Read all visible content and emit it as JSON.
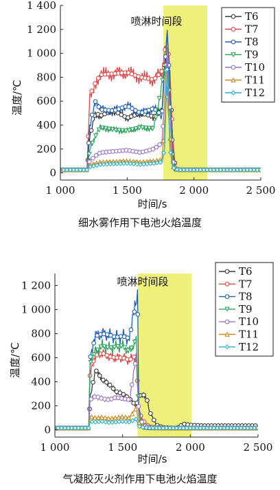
{
  "figure": {
    "captions": [
      "细水雾作用下电池火焰温度",
      "气凝胶灭火剂作用下电池火焰温度"
    ]
  },
  "colors": {
    "spray_band": "#eef07a",
    "T6": "#3a3a3a",
    "T7": "#e04848",
    "T8": "#1f5fb4",
    "T9": "#2fa35f",
    "T10": "#9a72c8",
    "T11": "#c88a1e",
    "T12": "#2ab0c8"
  },
  "chart_data": [
    {
      "type": "line",
      "title": "细水雾作用下电池火焰温度",
      "xlabel": "时间/s",
      "ylabel": "温度/℃",
      "xlim": [
        1000,
        2500
      ],
      "ylim": [
        -60,
        1400
      ],
      "xticks": [
        1000,
        1500,
        2000,
        2500
      ],
      "xtick_labels": [
        "1 000",
        "1 500",
        "2 000",
        "2 500"
      ],
      "yticks": [
        0,
        200,
        400,
        600,
        800,
        1000,
        1200,
        1400
      ],
      "ytick_labels": [
        "0",
        "200",
        "400",
        "600",
        "800",
        "1 000",
        "1 200",
        "1 400"
      ],
      "annotation": "喷淋时间段",
      "spray_range": [
        1770,
        2100
      ],
      "legend": "top-right",
      "series": [
        {
          "name": "T6",
          "x": [
            1000,
            1200,
            1220,
            1260,
            1300,
            1400,
            1500,
            1600,
            1700,
            1760,
            1780,
            1800,
            1820,
            1840,
            1860,
            1900,
            2500
          ],
          "values": [
            25,
            25,
            300,
            500,
            480,
            520,
            460,
            500,
            470,
            520,
            900,
            950,
            800,
            300,
            30,
            25,
            25
          ]
        },
        {
          "name": "T7",
          "x": [
            1000,
            1200,
            1220,
            1260,
            1300,
            1400,
            1500,
            1600,
            1700,
            1760,
            1780,
            1800,
            1820,
            1840,
            1860,
            1900,
            2500
          ],
          "values": [
            25,
            25,
            650,
            750,
            820,
            830,
            840,
            800,
            780,
            850,
            1000,
            1150,
            800,
            300,
            30,
            25,
            25
          ]
        },
        {
          "name": "T8",
          "x": [
            1000,
            1200,
            1220,
            1260,
            1300,
            1400,
            1500,
            1600,
            1700,
            1760,
            1780,
            1800,
            1820,
            1840,
            1860,
            1900,
            2500
          ],
          "values": [
            25,
            25,
            400,
            600,
            530,
            520,
            560,
            500,
            540,
            480,
            850,
            1200,
            700,
            200,
            30,
            25,
            25
          ]
        },
        {
          "name": "T9",
          "x": [
            1000,
            1200,
            1220,
            1260,
            1300,
            1400,
            1500,
            1600,
            1700,
            1760,
            1780,
            1800,
            1820,
            1840,
            1860,
            1900,
            2500
          ],
          "values": [
            25,
            25,
            200,
            300,
            380,
            360,
            350,
            380,
            370,
            750,
            850,
            950,
            600,
            150,
            30,
            25,
            25
          ]
        },
        {
          "name": "T10",
          "x": [
            1000,
            1200,
            1220,
            1260,
            1300,
            1400,
            1500,
            1600,
            1700,
            1760,
            1780,
            1800,
            1820,
            1840,
            1860,
            1900,
            2500
          ],
          "values": [
            25,
            25,
            100,
            140,
            170,
            180,
            190,
            170,
            200,
            250,
            600,
            1000,
            500,
            100,
            30,
            25,
            25
          ]
        },
        {
          "name": "T11",
          "x": [
            1000,
            1200,
            1220,
            1260,
            1300,
            1400,
            1500,
            1600,
            1700,
            1760,
            1780,
            1800,
            1820,
            1840,
            1860,
            1900,
            2500
          ],
          "values": [
            25,
            25,
            60,
            80,
            90,
            95,
            100,
            90,
            100,
            110,
            400,
            700,
            300,
            60,
            30,
            25,
            25
          ]
        },
        {
          "name": "T12",
          "x": [
            1000,
            1200,
            1220,
            1260,
            1300,
            1400,
            1500,
            1600,
            1700,
            1760,
            1780,
            1800,
            1820,
            1840,
            1860,
            1900,
            2500
          ],
          "values": [
            25,
            25,
            50,
            60,
            70,
            75,
            80,
            70,
            80,
            90,
            200,
            900,
            200,
            50,
            30,
            25,
            25
          ]
        }
      ]
    },
    {
      "type": "line",
      "title": "气凝胶灭火剂作用下电池火焰温度",
      "xlabel": "时间/s",
      "ylabel": "温度/℃",
      "xlim": [
        1000,
        2500
      ],
      "ylim": [
        -60,
        1300
      ],
      "xticks": [
        1000,
        1500,
        2000,
        2500
      ],
      "xtick_labels": [
        "1 000",
        "1 500",
        "2 000",
        "2 500"
      ],
      "yticks": [
        0,
        200,
        400,
        600,
        800,
        1000,
        1200
      ],
      "ytick_labels": [
        "0",
        "200",
        "400",
        "600",
        "800",
        "1 000",
        "1 200"
      ],
      "annotation": "喷淋时间段",
      "spray_range": [
        1610,
        2010
      ],
      "legend": "top-right",
      "series": [
        {
          "name": "T6",
          "x": [
            1000,
            1250,
            1260,
            1300,
            1350,
            1400,
            1450,
            1500,
            1550,
            1600,
            1620,
            1650,
            1680,
            1700,
            1750,
            1800,
            1900,
            1950,
            2000,
            2100,
            2200,
            2300,
            2400,
            2500
          ],
          "values": [
            15,
            15,
            280,
            500,
            420,
            380,
            320,
            300,
            260,
            200,
            280,
            300,
            250,
            150,
            40,
            20,
            15,
            50,
            40,
            35,
            35,
            35,
            35,
            35
          ]
        },
        {
          "name": "T7",
          "x": [
            1000,
            1250,
            1260,
            1300,
            1350,
            1400,
            1450,
            1500,
            1550,
            1600,
            1620,
            1650,
            1680,
            1700,
            1750,
            1800,
            1900,
            2000,
            2500
          ],
          "values": [
            15,
            15,
            500,
            620,
            640,
            610,
            600,
            600,
            580,
            620,
            150,
            80,
            40,
            25,
            20,
            15,
            15,
            15,
            15
          ]
        },
        {
          "name": "T8",
          "x": [
            1000,
            1250,
            1260,
            1300,
            1350,
            1400,
            1450,
            1500,
            1550,
            1590,
            1610,
            1620,
            1640,
            1660,
            1700,
            1800,
            2000,
            2500
          ],
          "values": [
            15,
            15,
            600,
            780,
            800,
            790,
            770,
            780,
            760,
            1000,
            1150,
            200,
            50,
            20,
            15,
            15,
            15,
            15
          ]
        },
        {
          "name": "T9",
          "x": [
            1000,
            1250,
            1260,
            1300,
            1350,
            1400,
            1450,
            1500,
            1550,
            1600,
            1620,
            1650,
            1700,
            1800,
            2000,
            2500
          ],
          "values": [
            15,
            15,
            550,
            650,
            700,
            680,
            690,
            700,
            650,
            750,
            120,
            40,
            20,
            15,
            15,
            15
          ]
        },
        {
          "name": "T10",
          "x": [
            1000,
            1250,
            1260,
            1300,
            1350,
            1400,
            1450,
            1500,
            1550,
            1600,
            1620,
            1650,
            1700,
            1800,
            2000,
            2500
          ],
          "values": [
            15,
            15,
            250,
            280,
            260,
            250,
            270,
            260,
            250,
            600,
            150,
            40,
            20,
            15,
            15,
            15
          ]
        },
        {
          "name": "T11",
          "x": [
            1000,
            1250,
            1260,
            1300,
            1350,
            1400,
            1450,
            1500,
            1550,
            1600,
            1620,
            1650,
            1700,
            1800,
            2000,
            2500
          ],
          "values": [
            15,
            15,
            110,
            100,
            105,
            95,
            100,
            110,
            100,
            180,
            60,
            30,
            20,
            15,
            15,
            15
          ]
        },
        {
          "name": "T12",
          "x": [
            1000,
            1250,
            1260,
            1300,
            1350,
            1400,
            1450,
            1500,
            1550,
            1600,
            1620,
            1650,
            1700,
            1800,
            2000,
            2500
          ],
          "values": [
            15,
            15,
            70,
            65,
            70,
            60,
            65,
            70,
            65,
            90,
            30,
            20,
            15,
            15,
            15,
            15
          ]
        }
      ]
    }
  ]
}
